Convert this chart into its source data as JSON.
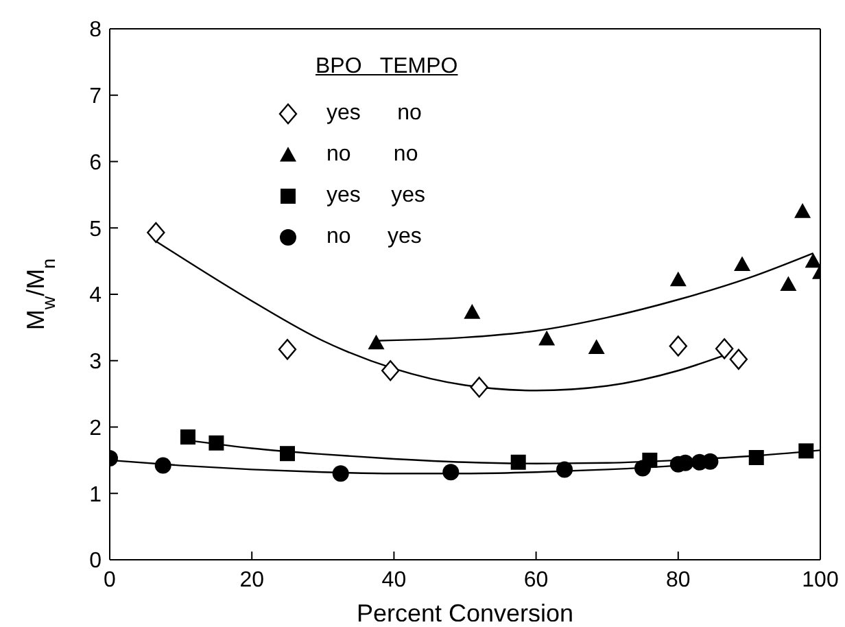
{
  "chart_data": {
    "type": "scatter",
    "xlabel": "Percent Conversion",
    "ylabel": "M$_{w}$/M$_{n}$",
    "legend_title": "BPO   TEMPO",
    "legend": "top left",
    "xlim": [
      0,
      100
    ],
    "xticks": [
      0,
      20,
      40,
      60,
      80,
      100
    ],
    "ylim": [
      0,
      8
    ],
    "yticks": [
      0,
      1,
      2,
      3,
      4,
      5,
      6,
      7,
      8
    ],
    "series": [
      {
        "name": "yes      no",
        "color": "#000000",
        "marker": "diamond",
        "x": [
          6.5,
          25,
          39.5,
          52,
          80,
          86.5,
          88.5
        ],
        "values": [
          4.93,
          3.17,
          2.85,
          2.6,
          3.22,
          3.18,
          3.02
        ]
      },
      {
        "name": "no       no",
        "color": "#000000",
        "marker": "triangle",
        "x": [
          37.5,
          51,
          61.5,
          68.5,
          80,
          89,
          95.5,
          97.5,
          99,
          100
        ],
        "values": [
          3.27,
          3.73,
          3.33,
          3.2,
          4.22,
          4.45,
          4.15,
          5.25,
          4.5,
          4.33
        ]
      },
      {
        "name": "yes     yes",
        "color": "#000000",
        "marker": "square",
        "x": [
          11,
          15,
          25,
          57.5,
          76,
          91,
          98
        ],
        "values": [
          1.85,
          1.76,
          1.6,
          1.47,
          1.5,
          1.54,
          1.64
        ]
      },
      {
        "name": "no      yes",
        "color": "#000000",
        "marker": "circle",
        "x": [
          0,
          7.5,
          32.5,
          48,
          64,
          75,
          80,
          81,
          83,
          84.5
        ],
        "values": [
          1.53,
          1.42,
          1.3,
          1.32,
          1.36,
          1.38,
          1.44,
          1.46,
          1.47,
          1.48
        ]
      },
      {
        "type": "line",
        "color": "#000000",
        "marker": "none",
        "x": [
          6.5,
          20,
          30,
          40,
          50,
          60,
          70,
          80,
          87
        ],
        "values": [
          4.8,
          3.9,
          3.3,
          2.88,
          2.63,
          2.55,
          2.62,
          2.85,
          3.1
        ]
      },
      {
        "type": "line",
        "color": "#000000",
        "marker": "none",
        "x": [
          37.5,
          50,
          60,
          70,
          80,
          90,
          99
        ],
        "values": [
          3.3,
          3.35,
          3.45,
          3.65,
          3.92,
          4.25,
          4.62
        ]
      },
      {
        "type": "line",
        "color": "#000000",
        "marker": "none",
        "x": [
          11,
          20,
          30,
          40,
          50,
          60,
          70,
          80,
          90,
          100
        ],
        "values": [
          1.8,
          1.68,
          1.59,
          1.52,
          1.47,
          1.45,
          1.46,
          1.5,
          1.56,
          1.65
        ]
      },
      {
        "type": "line",
        "color": "#000000",
        "marker": "none",
        "x": [
          0,
          10,
          20,
          30,
          40,
          50,
          60,
          70,
          80,
          85
        ],
        "values": [
          1.5,
          1.42,
          1.36,
          1.32,
          1.3,
          1.3,
          1.32,
          1.36,
          1.42,
          1.46
        ]
      }
    ]
  }
}
